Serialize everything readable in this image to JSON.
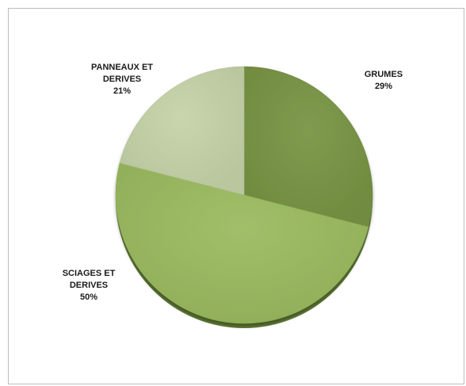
{
  "chart_data": {
    "type": "pie",
    "title": "",
    "slices": [
      {
        "label_lines": [
          "GRUMES"
        ],
        "value": 29,
        "percent_label": "29%",
        "color": "#789444"
      },
      {
        "label_lines": [
          "SCIAGES ET",
          "DERIVES"
        ],
        "value": 50,
        "percent_label": "50%",
        "color": "#9bbb5f"
      },
      {
        "label_lines": [
          "PANNEAUX ET",
          "DERIVES"
        ],
        "value": 21,
        "percent_label": "21%",
        "color": "#c5d3a8"
      }
    ],
    "start_angle_deg": 0,
    "direction": "clockwise",
    "shading": "3d-slight"
  }
}
